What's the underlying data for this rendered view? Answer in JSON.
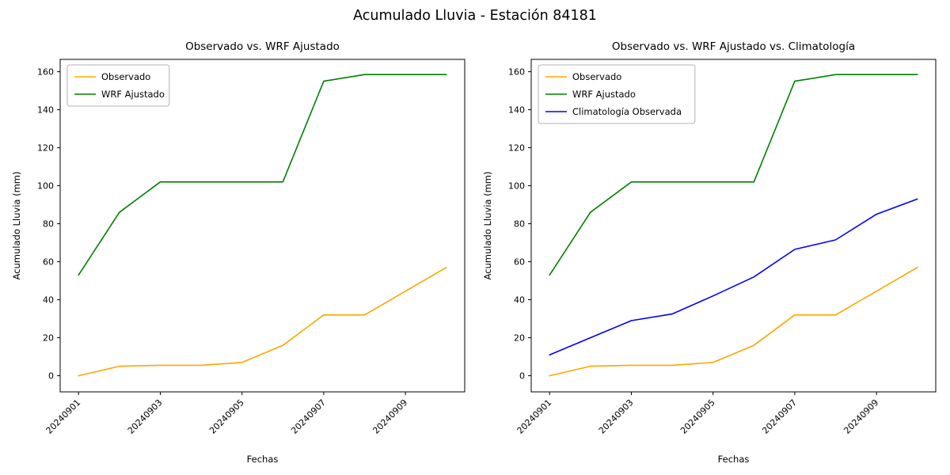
{
  "figure": {
    "title": "Acumulado Lluvia - Estación 84181",
    "background_color": "#ffffff",
    "frame_color": "#000000"
  },
  "chart_data": [
    {
      "type": "line",
      "title": "Observado vs. WRF Ajustado",
      "xlabel": "Fechas",
      "ylabel": "Acumulado Lluvia (mm)",
      "x": [
        "20240901",
        "20240902",
        "20240903",
        "20240904",
        "20240905",
        "20240906",
        "20240907",
        "20240908",
        "20240909",
        "20240910"
      ],
      "xtick_labels": [
        "20240901",
        "20240903",
        "20240905",
        "20240907",
        "20240909"
      ],
      "yticks": [
        0,
        20,
        40,
        60,
        80,
        100,
        120,
        140,
        160
      ],
      "ylim": [
        -8.5,
        166.5
      ],
      "grid": "off",
      "legend_position": "upper left",
      "series": [
        {
          "name": "Observado",
          "color": "#ffa500",
          "values": [
            0,
            5,
            5.5,
            5.5,
            7,
            16,
            32,
            32,
            44.5,
            57
          ]
        },
        {
          "name": "WRF Ajustado",
          "color": "#008000",
          "values": [
            53,
            86,
            102,
            102,
            102,
            102,
            155,
            158.5,
            158.5,
            158.5
          ]
        }
      ]
    },
    {
      "type": "line",
      "title": "Observado vs. WRF Ajustado vs. Climatología",
      "xlabel": "Fechas",
      "ylabel": "Acumulado Lluvia (mm)",
      "x": [
        "20240901",
        "20240902",
        "20240903",
        "20240904",
        "20240905",
        "20240906",
        "20240907",
        "20240908",
        "20240909",
        "20240910"
      ],
      "xtick_labels": [
        "20240901",
        "20240903",
        "20240905",
        "20240907",
        "20240909"
      ],
      "yticks": [
        0,
        20,
        40,
        60,
        80,
        100,
        120,
        140,
        160
      ],
      "ylim": [
        -8.5,
        166.5
      ],
      "grid": "off",
      "legend_position": "upper left",
      "series": [
        {
          "name": "Observado",
          "color": "#ffa500",
          "values": [
            0,
            5,
            5.5,
            5.5,
            7,
            16,
            32,
            32,
            44.5,
            57
          ]
        },
        {
          "name": "WRF Ajustado",
          "color": "#008000",
          "values": [
            53,
            86,
            102,
            102,
            102,
            102,
            155,
            158.5,
            158.5,
            158.5
          ]
        },
        {
          "name": "Climatología Observada",
          "color": "#0000ff",
          "values": [
            11,
            20,
            29,
            32.5,
            42,
            52,
            66.5,
            71.5,
            85,
            93
          ]
        }
      ]
    }
  ]
}
